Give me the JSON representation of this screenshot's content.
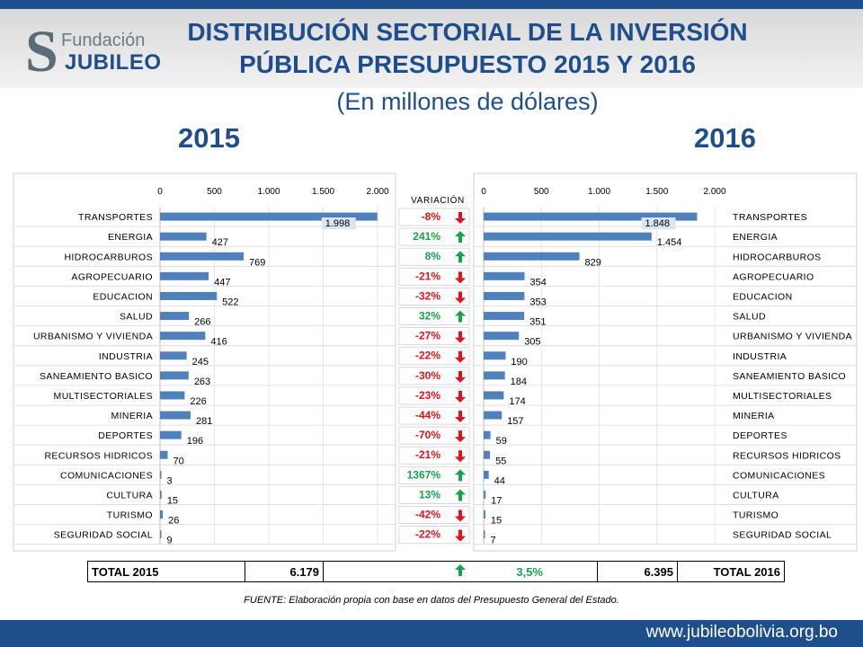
{
  "header": {
    "logo_top": "Fundación",
    "logo_bottom": "JUBILEO",
    "title_line1": "DISTRIBUCIÓN SECTORIAL DE LA INVERSIÓN",
    "title_line2": "PÚBLICA PRESUPUESTO 2015 Y 2016",
    "subtitle": "(En millones de dólares)"
  },
  "years": {
    "left": "2015",
    "right": "2016"
  },
  "variation_header": "VARIACIÓN",
  "colors": {
    "bar": "#4f81bd",
    "up": "#17a34a",
    "down": "#e0141e",
    "title": "#1f4e8c"
  },
  "chart_data": [
    {
      "type": "bar",
      "title": "2015",
      "orientation": "horizontal",
      "categories": [
        "TRANSPORTES",
        "ENERGIA",
        "HIDROCARBUROS",
        "AGROPECUARIO",
        "EDUCACION",
        "SALUD",
        "URBANISMO Y VIVIENDA",
        "INDUSTRIA",
        "SANEAMIENTO BASICO",
        "MULTISECTORIALES",
        "MINERIA",
        "DEPORTES",
        "RECURSOS HIDRICOS",
        "COMUNICACIONES",
        "CULTURA",
        "TURISMO",
        "SEGURIDAD SOCIAL"
      ],
      "values": [
        1998,
        427,
        769,
        447,
        522,
        266,
        416,
        245,
        263,
        226,
        281,
        196,
        70,
        3,
        15,
        26,
        9
      ],
      "labels": [
        "1.998",
        "427",
        "769",
        "447",
        "522",
        "266",
        "416",
        "245",
        "263",
        "226",
        "281",
        "196",
        "70",
        "3",
        "15",
        "26",
        "9"
      ],
      "xlim": [
        0,
        2000
      ],
      "ticks": [
        "0",
        "500",
        "1.000",
        "1.500",
        "2.000"
      ],
      "tick_values": [
        0,
        500,
        1000,
        1500,
        2000
      ],
      "grid": true
    },
    {
      "type": "bar",
      "title": "2016",
      "orientation": "horizontal",
      "categories": [
        "TRANSPORTES",
        "ENERGIA",
        "HIDROCARBUROS",
        "AGROPECUARIO",
        "EDUCACION",
        "SALUD",
        "URBANISMO Y VIVIENDA",
        "INDUSTRIA",
        "SANEAMIENTO BASICO",
        "MULTISECTORIALES",
        "MINERIA",
        "DEPORTES",
        "RECURSOS HIDRICOS",
        "COMUNICACIONES",
        "CULTURA",
        "TURISMO",
        "SEGURIDAD SOCIAL"
      ],
      "values": [
        1848,
        1454,
        829,
        354,
        353,
        351,
        305,
        190,
        184,
        174,
        157,
        59,
        55,
        44,
        17,
        15,
        7
      ],
      "labels": [
        "1.848",
        "1.454",
        "829",
        "354",
        "353",
        "351",
        "305",
        "190",
        "184",
        "174",
        "157",
        "59",
        "55",
        "44",
        "17",
        "15",
        "7"
      ],
      "xlim": [
        0,
        2000
      ],
      "ticks": [
        "0",
        "500",
        "1.000",
        "1.500",
        "2.000"
      ],
      "tick_values": [
        0,
        500,
        1000,
        1500,
        2000
      ],
      "grid": true
    }
  ],
  "variation": [
    {
      "text": "-8%",
      "dir": "down"
    },
    {
      "text": "241%",
      "dir": "up"
    },
    {
      "text": "8%",
      "dir": "up"
    },
    {
      "text": "-21%",
      "dir": "down"
    },
    {
      "text": "-32%",
      "dir": "down"
    },
    {
      "text": "32%",
      "dir": "up"
    },
    {
      "text": "-27%",
      "dir": "down"
    },
    {
      "text": "-22%",
      "dir": "down"
    },
    {
      "text": "-30%",
      "dir": "down"
    },
    {
      "text": "-23%",
      "dir": "down"
    },
    {
      "text": "-44%",
      "dir": "down"
    },
    {
      "text": "-70%",
      "dir": "down"
    },
    {
      "text": "-21%",
      "dir": "down"
    },
    {
      "text": "1367%",
      "dir": "up"
    },
    {
      "text": "13%",
      "dir": "up"
    },
    {
      "text": "-42%",
      "dir": "down"
    },
    {
      "text": "-22%",
      "dir": "down"
    }
  ],
  "totals": {
    "label_2015": "TOTAL 2015",
    "value_2015": "6.179",
    "variation": "3,5%",
    "value_2016": "6.395",
    "label_2016": "TOTAL 2016"
  },
  "source": "FUENTE: Elaboración propia con base en datos del Presupuesto General del Estado.",
  "footer_url": "www.jubileobolivia.org.bo"
}
